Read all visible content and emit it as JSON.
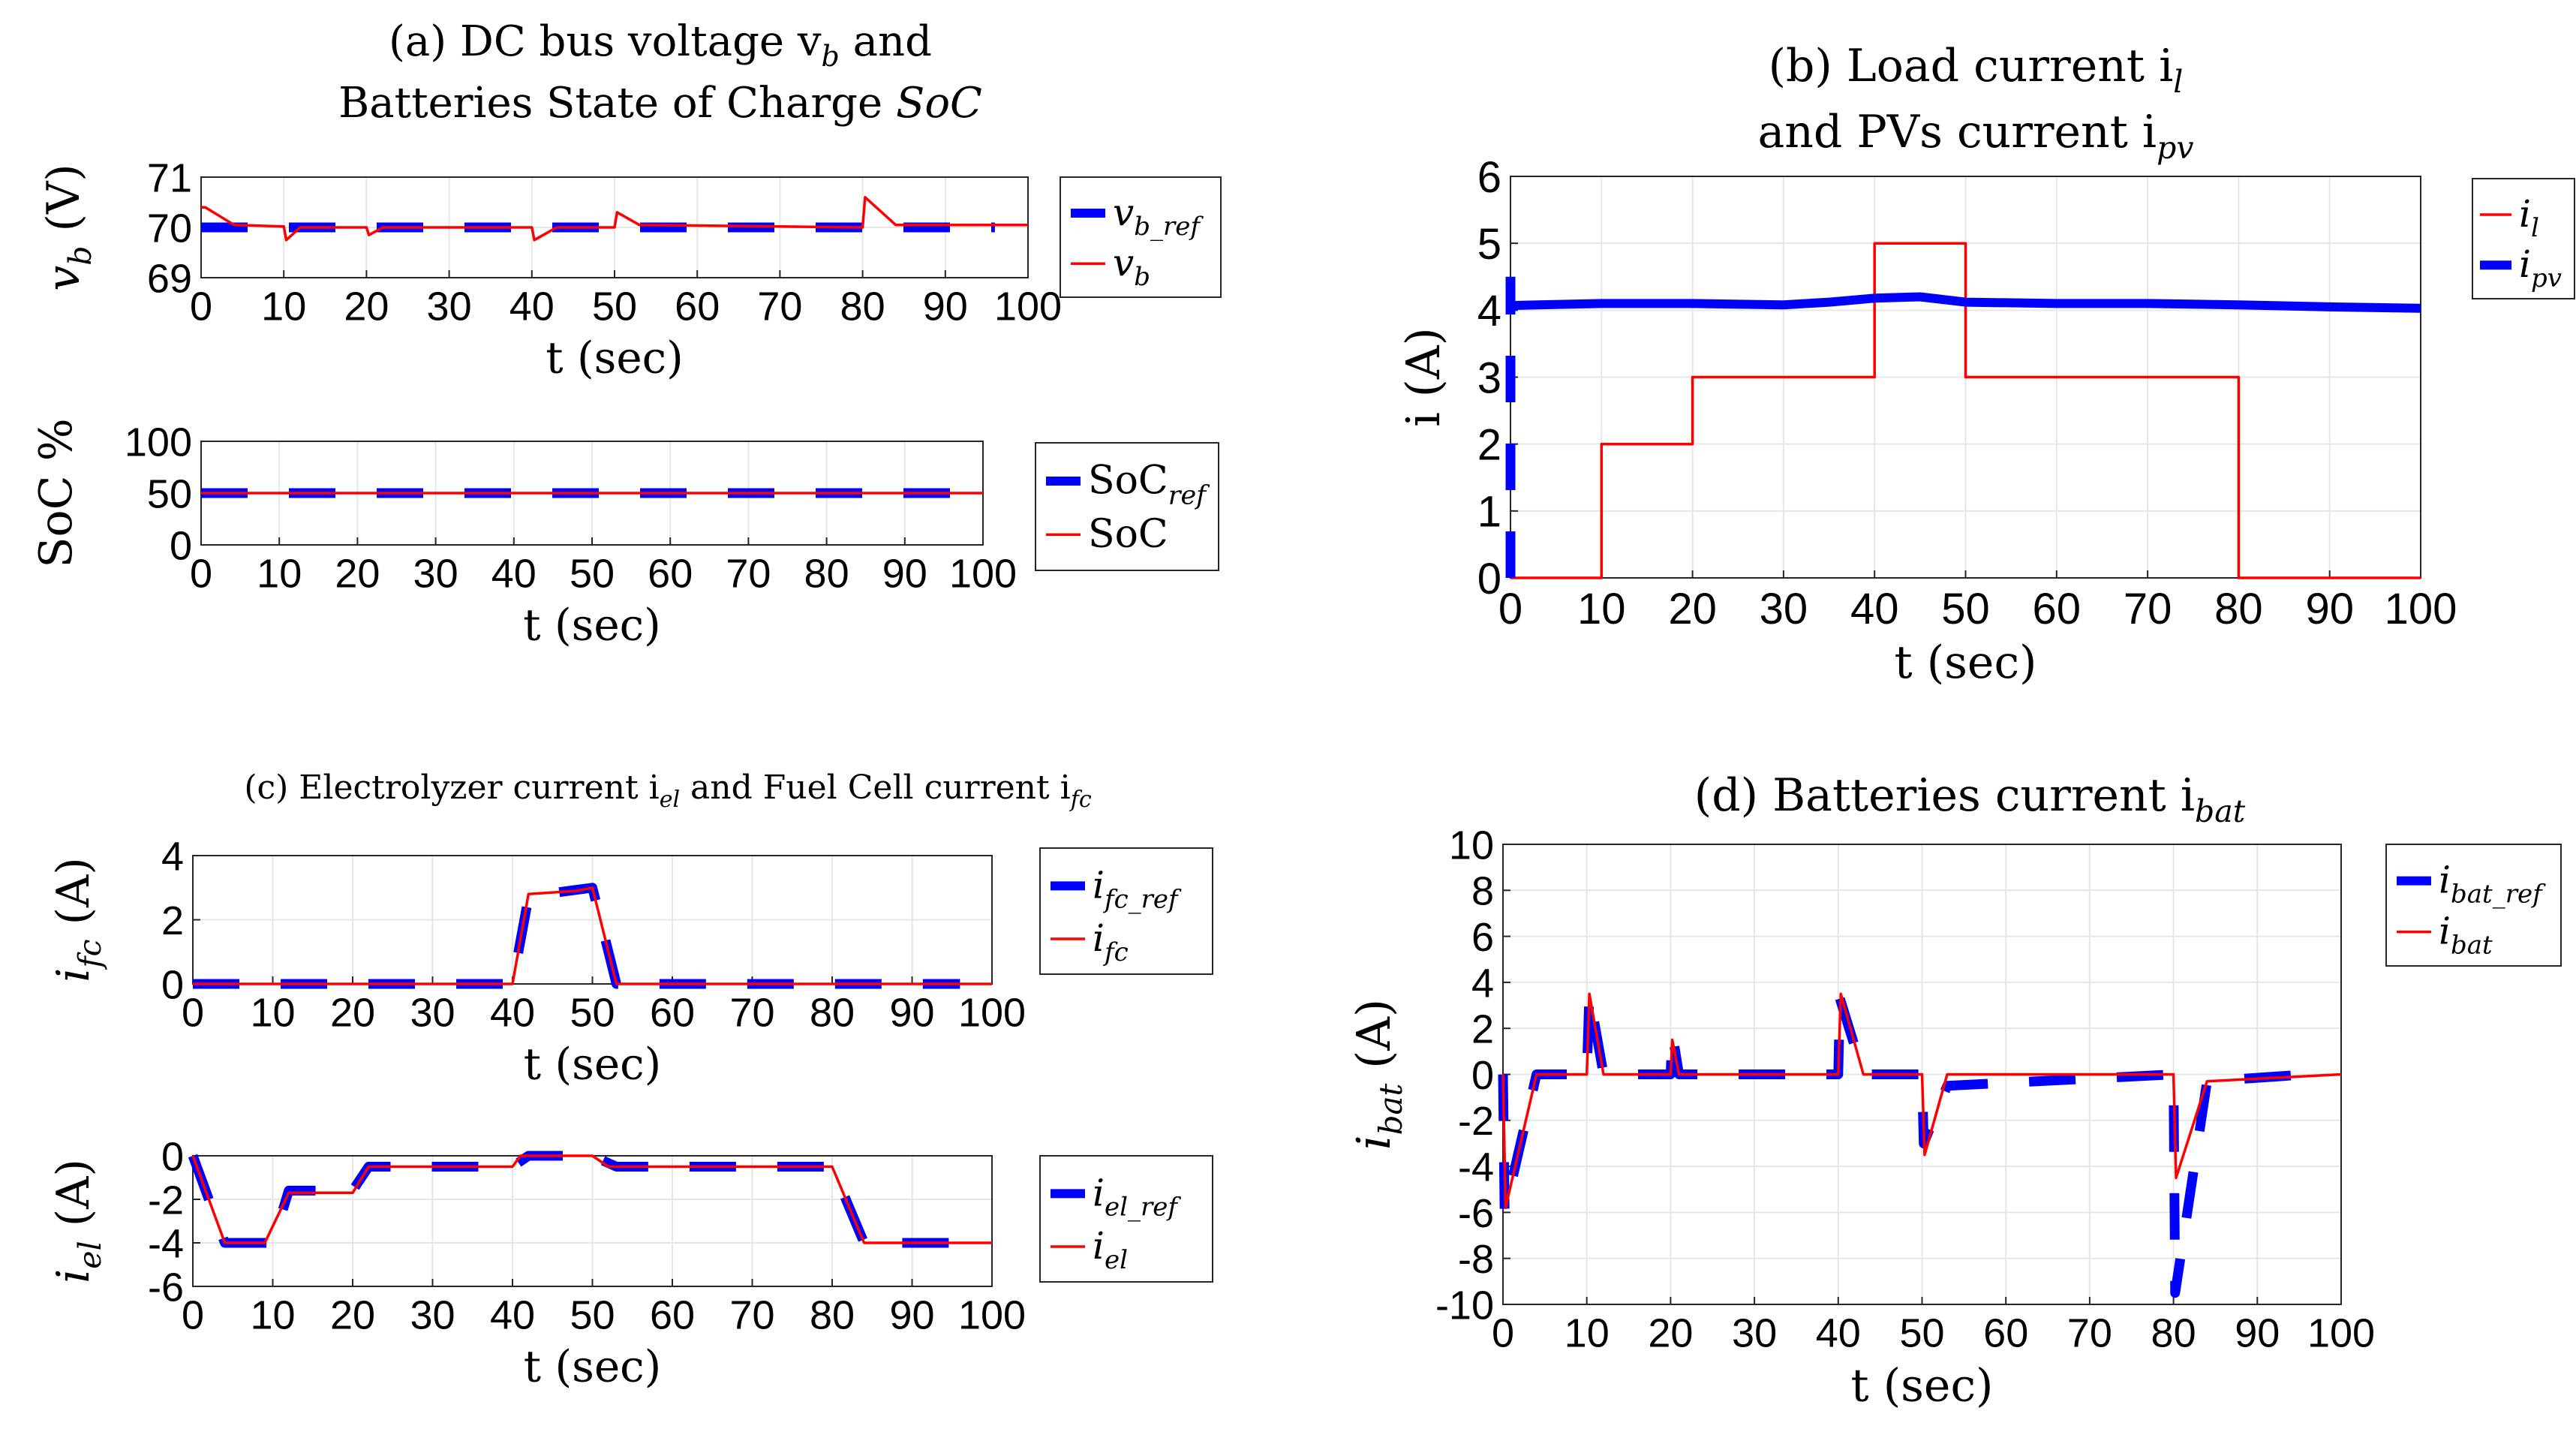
{
  "figure": {
    "background": "#ffffff",
    "ref_color": "#0000ff",
    "meas_color": "#ff0000"
  },
  "chart_data": [
    {
      "id": "a_vb",
      "type": "line",
      "title": "(a) DC bus voltage v_b and Batteries State of Charge SoC",
      "title_lines": [
        "(a) DC bus voltage v",
        "and",
        "Batteries State of Charge"
      ],
      "title_subs": {
        "vb": "b",
        "soc": "SoC"
      },
      "xlabel": "t (sec)",
      "ylabel": "v_b (V)",
      "ylabel_main": "v",
      "ylabel_sub": "b",
      "ylabel_unit": "(V)",
      "xlim": [
        0,
        100
      ],
      "ylim": [
        69,
        71
      ],
      "xticks": [
        "0",
        "10",
        "20",
        "30",
        "40",
        "50",
        "60",
        "70",
        "80",
        "90",
        "100"
      ],
      "yticks": [
        "69",
        "70",
        "71"
      ],
      "legend": {
        "position": "outside-right",
        "entries": [
          {
            "name": "v",
            "sub": "b_ref"
          },
          {
            "name": "v",
            "sub": "b"
          }
        ]
      },
      "series": [
        {
          "name": "v_b_ref",
          "style": "dashed",
          "color": "#0000ff",
          "x": [
            0,
            96
          ],
          "y": [
            70,
            70
          ]
        },
        {
          "name": "v_b",
          "style": "solid",
          "color": "#ff0000",
          "x": [
            0,
            0.5,
            4,
            10,
            10.3,
            12,
            20,
            20.3,
            22,
            40,
            40.3,
            43,
            50,
            50.3,
            53,
            80,
            80.3,
            84,
            100
          ],
          "y": [
            70.4,
            70.4,
            70.05,
            70.02,
            69.75,
            70.0,
            70.0,
            69.85,
            70.0,
            70.0,
            69.75,
            70.0,
            70.0,
            70.3,
            70.05,
            70.0,
            70.6,
            70.05,
            70.05
          ]
        }
      ]
    },
    {
      "id": "a_soc",
      "type": "line",
      "xlabel": "t (sec)",
      "ylabel": "SoC %",
      "xlim": [
        0,
        100
      ],
      "ylim": [
        0,
        100
      ],
      "xticks": [
        "0",
        "10",
        "20",
        "30",
        "40",
        "50",
        "60",
        "70",
        "80",
        "90",
        "100"
      ],
      "yticks": [
        "0",
        "50",
        "100"
      ],
      "legend": {
        "position": "outside-right",
        "entries": [
          {
            "name": "SoC",
            "sub": "ref"
          },
          {
            "name": "SoC",
            "sub": ""
          }
        ]
      },
      "series": [
        {
          "name": "SoC_ref",
          "style": "dashed",
          "color": "#0000ff",
          "x": [
            0,
            96
          ],
          "y": [
            50,
            50
          ]
        },
        {
          "name": "SoC",
          "style": "solid",
          "color": "#ff0000",
          "x": [
            0,
            100
          ],
          "y": [
            50,
            50
          ]
        }
      ]
    },
    {
      "id": "b_i",
      "type": "line",
      "title": "(b) Load current i_l and PVs current i_pv",
      "title_lines": [
        "(b) Load current i",
        "and PVs current i"
      ],
      "title_subs": {
        "il": "l",
        "ipv": "pv"
      },
      "xlabel": "t (sec)",
      "ylabel": "i (A)",
      "xlim": [
        0,
        100
      ],
      "ylim": [
        0,
        6
      ],
      "xticks": [
        "0",
        "10",
        "20",
        "30",
        "40",
        "50",
        "60",
        "70",
        "80",
        "90",
        "100"
      ],
      "yticks": [
        "0",
        "1",
        "2",
        "3",
        "4",
        "5",
        "6"
      ],
      "legend": {
        "position": "outside-right",
        "entries": [
          {
            "name": "i",
            "sub": "l"
          },
          {
            "name": "i",
            "sub": "pv"
          }
        ]
      },
      "series": [
        {
          "name": "i_l",
          "style": "solid",
          "color": "#ff0000",
          "x": [
            0,
            10,
            10,
            20,
            20,
            40,
            40,
            50,
            50,
            80,
            80,
            100
          ],
          "y": [
            0,
            0,
            2,
            2,
            3,
            3,
            5,
            5,
            3,
            3,
            0,
            0
          ]
        },
        {
          "name": "i_pv_start",
          "style": "dashed",
          "color": "#0000ff",
          "x": [
            0,
            0
          ],
          "y": [
            0,
            4.5
          ]
        },
        {
          "name": "i_pv",
          "style": "thick",
          "color": "#0000ff",
          "x": [
            0,
            10,
            20,
            30,
            35,
            40,
            45,
            50,
            60,
            70,
            80,
            90,
            100
          ],
          "y": [
            4.07,
            4.1,
            4.1,
            4.08,
            4.12,
            4.18,
            4.2,
            4.12,
            4.1,
            4.1,
            4.08,
            4.05,
            4.03
          ]
        }
      ]
    },
    {
      "id": "c_ifc",
      "type": "line",
      "title": "(c) Electrolyzer current i_el and Fuel Cell current i_fc",
      "title_lines": [
        "(c) Electrolyzer current i",
        "and Fuel Cell current i"
      ],
      "title_subs": {
        "iel": "el",
        "ifc": "fc"
      },
      "xlabel": "t (sec)",
      "ylabel": "i_fc (A)",
      "ylabel_main": "i",
      "ylabel_sub": "fc",
      "ylabel_unit": "(A)",
      "xlim": [
        0,
        100
      ],
      "ylim": [
        0,
        4
      ],
      "xticks": [
        "0",
        "10",
        "20",
        "30",
        "40",
        "50",
        "60",
        "70",
        "80",
        "90",
        "100"
      ],
      "yticks": [
        "0",
        "2",
        "4"
      ],
      "legend": {
        "position": "outside-right",
        "entries": [
          {
            "name": "i",
            "sub": "fc_ref"
          },
          {
            "name": "i",
            "sub": "fc"
          }
        ]
      },
      "series": [
        {
          "name": "i_fc_ref",
          "style": "dashed",
          "color": "#0000ff",
          "x": [
            0,
            40,
            42,
            44,
            50,
            53,
            96
          ],
          "y": [
            0,
            0,
            2.7,
            2.8,
            3.0,
            0,
            0
          ]
        },
        {
          "name": "i_fc",
          "style": "solid",
          "color": "#ff0000",
          "x": [
            0,
            40,
            42,
            48,
            50,
            53,
            100
          ],
          "y": [
            0,
            0,
            2.8,
            2.9,
            3.0,
            0,
            0
          ]
        }
      ]
    },
    {
      "id": "c_iel",
      "type": "line",
      "xlabel": "t (sec)",
      "ylabel": "i_el (A)",
      "ylabel_main": "i",
      "ylabel_sub": "el",
      "ylabel_unit": "(A)",
      "xlim": [
        0,
        100
      ],
      "ylim": [
        -6,
        0
      ],
      "xticks": [
        "0",
        "10",
        "20",
        "30",
        "40",
        "50",
        "60",
        "70",
        "80",
        "90",
        "100"
      ],
      "yticks": [
        "0",
        "-2",
        "-4",
        "-6"
      ],
      "legend": {
        "position": "outside-right",
        "entries": [
          {
            "name": "i",
            "sub": "el_ref"
          },
          {
            "name": "i",
            "sub": "el"
          }
        ]
      },
      "series": [
        {
          "name": "i_el_ref",
          "style": "dashed",
          "color": "#0000ff",
          "x": [
            0,
            4,
            10,
            12,
            20,
            22,
            40,
            42,
            50,
            53,
            80,
            84,
            98
          ],
          "y": [
            0,
            -4,
            -4,
            -1.6,
            -1.6,
            -0.5,
            -0.5,
            0,
            0,
            -0.5,
            -0.5,
            -4,
            -4
          ]
        },
        {
          "name": "i_el",
          "style": "solid",
          "color": "#ff0000",
          "x": [
            0,
            4,
            9,
            12,
            20,
            22,
            40,
            41,
            50,
            52,
            80,
            84,
            100
          ],
          "y": [
            0,
            -4,
            -4,
            -1.7,
            -1.7,
            -0.5,
            -0.5,
            0,
            0,
            -0.5,
            -0.5,
            -4,
            -4
          ]
        }
      ]
    },
    {
      "id": "d_ibat",
      "type": "line",
      "title": "(d) Batteries current i_bat",
      "title_lines": [
        "(d) Batteries current i"
      ],
      "title_subs": {
        "ibat": "bat"
      },
      "xlabel": "t (sec)",
      "ylabel": "i_bat (A)",
      "ylabel_main": "i",
      "ylabel_sub": "bat",
      "ylabel_unit": "(A)",
      "xlim": [
        0,
        100
      ],
      "ylim": [
        -10,
        10
      ],
      "xticks": [
        "0",
        "10",
        "20",
        "30",
        "40",
        "50",
        "60",
        "70",
        "80",
        "90",
        "100"
      ],
      "yticks": [
        "10",
        "8",
        "6",
        "4",
        "2",
        "0",
        "-2",
        "-4",
        "-6",
        "-8",
        "-10"
      ],
      "legend": {
        "position": "outside-right",
        "entries": [
          {
            "name": "i",
            "sub": "bat_ref"
          },
          {
            "name": "i",
            "sub": "bat"
          }
        ]
      },
      "series": [
        {
          "name": "i_bat_ref",
          "style": "dashed",
          "color": "#0000ff",
          "x": [
            0,
            0.2,
            4,
            10,
            10.3,
            12,
            20,
            20.2,
            21,
            40,
            40.2,
            43,
            50,
            50.2,
            53,
            80,
            80.2,
            84,
            96
          ],
          "y": [
            0,
            -6,
            0,
            0,
            3.5,
            0,
            0,
            1.8,
            0,
            0,
            3.3,
            0,
            0,
            -3,
            -0.5,
            0,
            -9.5,
            -0.3,
            0
          ]
        },
        {
          "name": "i_bat",
          "style": "solid",
          "color": "#ff0000",
          "x": [
            0,
            0.3,
            4,
            10,
            10.3,
            12,
            20,
            20.2,
            21,
            40,
            40.3,
            43,
            50,
            50.3,
            53,
            80,
            80.3,
            84,
            100
          ],
          "y": [
            0,
            -5.8,
            0,
            0,
            3.5,
            0,
            0,
            1.5,
            0,
            0,
            3.5,
            0,
            0,
            -3.5,
            0,
            0,
            -4.5,
            -0.3,
            0
          ]
        }
      ]
    }
  ]
}
